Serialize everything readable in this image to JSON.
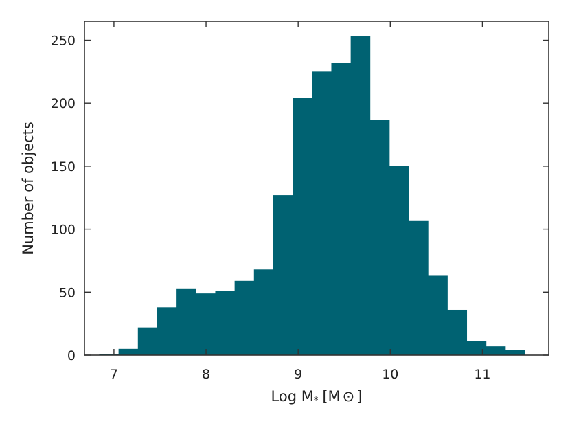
{
  "chart_data": {
    "type": "bar",
    "subtype": "histogram",
    "xlabel": "Log M",
    "xlabel_sub": "*",
    "xlabel_unit_open": "[M",
    "xlabel_unit_symbol": "⊙",
    "xlabel_unit_close": "]",
    "ylabel": "Number of objects",
    "xlim": [
      6.68,
      11.72
    ],
    "ylim": [
      0,
      265
    ],
    "xticks": [
      7,
      8,
      9,
      10,
      11
    ],
    "yticks": [
      0,
      50,
      100,
      150,
      200,
      250
    ],
    "bar_color": "#006272",
    "grid": false,
    "bins": [
      {
        "x0": 6.84,
        "x1": 7.05,
        "value": 1
      },
      {
        "x0": 7.05,
        "x1": 7.26,
        "value": 5
      },
      {
        "x0": 7.26,
        "x1": 7.47,
        "value": 22
      },
      {
        "x0": 7.47,
        "x1": 7.68,
        "value": 38
      },
      {
        "x0": 7.68,
        "x1": 7.89,
        "value": 53
      },
      {
        "x0": 7.89,
        "x1": 8.1,
        "value": 49
      },
      {
        "x0": 8.1,
        "x1": 8.31,
        "value": 51
      },
      {
        "x0": 8.31,
        "x1": 8.52,
        "value": 59
      },
      {
        "x0": 8.52,
        "x1": 8.73,
        "value": 68
      },
      {
        "x0": 8.73,
        "x1": 8.94,
        "value": 127
      },
      {
        "x0": 8.94,
        "x1": 9.15,
        "value": 204
      },
      {
        "x0": 9.15,
        "x1": 9.36,
        "value": 225
      },
      {
        "x0": 9.36,
        "x1": 9.57,
        "value": 232
      },
      {
        "x0": 9.57,
        "x1": 9.78,
        "value": 253
      },
      {
        "x0": 9.78,
        "x1": 9.99,
        "value": 187
      },
      {
        "x0": 9.99,
        "x1": 10.2,
        "value": 150
      },
      {
        "x0": 10.2,
        "x1": 10.41,
        "value": 107
      },
      {
        "x0": 10.41,
        "x1": 10.62,
        "value": 63
      },
      {
        "x0": 10.62,
        "x1": 10.83,
        "value": 36
      },
      {
        "x0": 10.83,
        "x1": 11.04,
        "value": 11
      },
      {
        "x0": 11.04,
        "x1": 11.25,
        "value": 7
      },
      {
        "x0": 11.25,
        "x1": 11.46,
        "value": 4
      }
    ]
  }
}
